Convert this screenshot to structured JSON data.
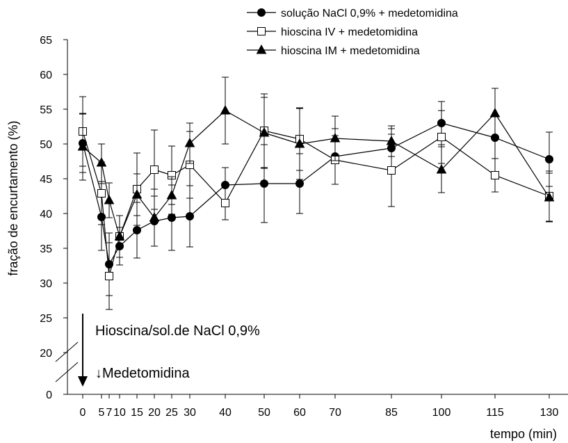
{
  "chart_data": {
    "type": "line",
    "title": "",
    "xlabel": "tempo (min)",
    "ylabel": "fração de encurtamento (%)",
    "ylim": [
      0,
      65
    ],
    "y_ticks": [
      0,
      20,
      25,
      30,
      35,
      40,
      45,
      50,
      55,
      60,
      65
    ],
    "y_axis_break": [
      0,
      20
    ],
    "x": [
      0,
      5,
      7,
      10,
      15,
      20,
      25,
      30,
      40,
      50,
      60,
      70,
      85,
      100,
      115,
      130
    ],
    "x_tick_labels": [
      "0",
      "5",
      "7",
      "10",
      "15",
      "20",
      "25",
      "30",
      "40",
      "50",
      "60",
      "70",
      "85",
      "100",
      "115",
      "130"
    ],
    "legend_position": "top-right",
    "grid": false,
    "series": [
      {
        "name": "solução NaCl 0,9% + medetomidina",
        "marker": "filled-circle",
        "color": "#000000",
        "values": [
          50.1,
          39.5,
          32.7,
          35.3,
          37.6,
          38.9,
          39.4,
          39.6,
          44.1,
          44.3,
          44.3,
          48.2,
          49.4,
          53.0,
          50.9,
          47.8
        ],
        "errors": [
          4.2,
          4.8,
          4.5,
          2.7,
          4.0,
          3.6,
          4.7,
          4.4,
          2.5,
          5.6,
          4.3,
          4.0,
          2.8,
          3.1,
          3.0,
          3.9
        ]
      },
      {
        "name": "hioscina IV + medetomidina",
        "marker": "open-square",
        "color": "#000000",
        "values": [
          51.8,
          42.9,
          31.0,
          36.7,
          43.5,
          46.3,
          45.5,
          47.0,
          41.5,
          51.9,
          50.7,
          47.7,
          46.2,
          51.0,
          45.5,
          42.5
        ],
        "errors": [
          5.0,
          4.5,
          4.8,
          3.0,
          5.2,
          5.7,
          4.2,
          4.8,
          2.4,
          5.3,
          4.5,
          3.5,
          5.2,
          3.8,
          2.4,
          3.6
        ]
      },
      {
        "name": "hioscina IM + medetomidina",
        "marker": "filled-triangle",
        "color": "#000000",
        "values": [
          49.6,
          47.3,
          41.9,
          36.7,
          42.7,
          39.4,
          42.6,
          50.1,
          54.8,
          51.6,
          50.0,
          50.8,
          50.4,
          46.3,
          54.4,
          42.3
        ],
        "errors": [
          4.8,
          2.7,
          2.5,
          3.0,
          3.0,
          4.1,
          2.7,
          2.9,
          4.8,
          5.1,
          5.1,
          3.2,
          2.2,
          3.3,
          3.6,
          3.5
        ]
      }
    ],
    "annotations": [
      "Hioscina/sol.de NaCl 0,9%",
      "↓Medetomidina"
    ]
  }
}
